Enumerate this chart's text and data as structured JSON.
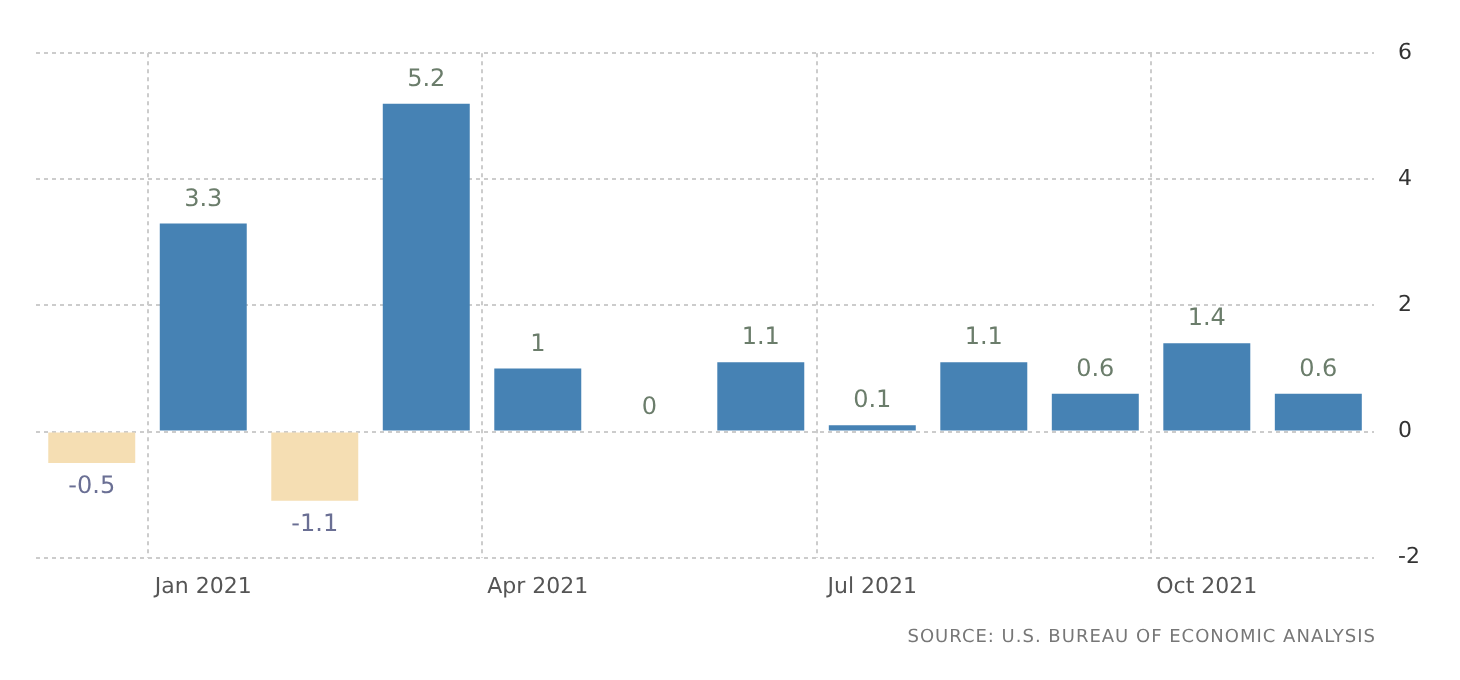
{
  "chart_data": {
    "type": "bar",
    "categories": [
      null,
      "Jan 2021",
      null,
      null,
      "Apr 2021",
      null,
      null,
      "Jul 2021",
      null,
      null,
      "Oct 2021",
      null
    ],
    "values": [
      -0.5,
      3.3,
      -1.1,
      5.2,
      1,
      0,
      1.1,
      0.1,
      1.1,
      0.6,
      1.4,
      0.6
    ],
    "colors": [
      "#f5deb3",
      "#4682b4",
      "#f5deb3",
      "#4682b4",
      "#4682b4",
      "#4682b4",
      "#4682b4",
      "#4682b4",
      "#4682b4",
      "#4682b4",
      "#4682b4",
      "#4682b4"
    ],
    "ylim": [
      -2,
      6
    ],
    "yticks": [
      -2,
      0,
      2,
      4,
      6
    ],
    "grid": true,
    "legend": false,
    "data_labels": true,
    "annotations": [
      "SOURCE: U.S. BUREAU OF ECONOMIC ANALYSIS"
    ]
  }
}
